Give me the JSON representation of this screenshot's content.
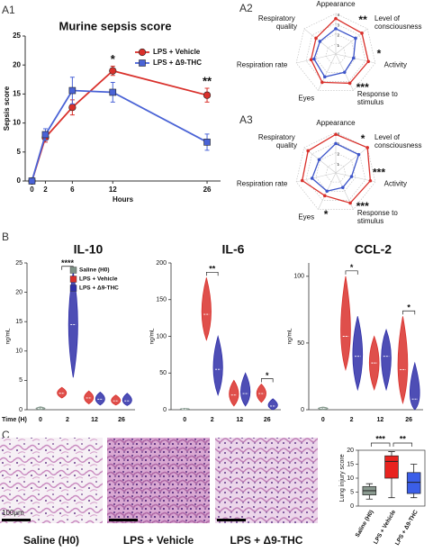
{
  "panel_labels": [
    "A1",
    "A2",
    "A3",
    "B",
    "C"
  ],
  "chart_data": [
    {
      "type": "line",
      "title": "Murine sepsis score",
      "xlabel": "Hours",
      "ylabel": "Sepsis score",
      "x": [
        0,
        2,
        6,
        12,
        26
      ],
      "xlim": [
        -1,
        28
      ],
      "xticks": [
        0,
        2,
        6,
        12,
        26
      ],
      "ylim": [
        0,
        25
      ],
      "yticks": [
        0,
        5,
        10,
        15,
        20,
        25
      ],
      "series": [
        {
          "name": "LPS  + Vehicle",
          "color": "#d9302b",
          "marker": "circle",
          "values": [
            0,
            7.5,
            12.7,
            19.0,
            14.8
          ],
          "errors": [
            0,
            0.8,
            1.3,
            0.8,
            1.2
          ]
        },
        {
          "name": "LPS + Δ9-THC",
          "color": "#4a63d6",
          "marker": "square",
          "values": [
            0,
            8.0,
            15.6,
            15.3,
            6.7
          ],
          "errors": [
            0,
            1.0,
            2.3,
            1.7,
            1.4
          ]
        }
      ],
      "annotations": [
        {
          "text": "*",
          "x": 12
        },
        {
          "text": "**",
          "x": 26
        }
      ]
    },
    {
      "type": "radar",
      "categories": [
        "Appearance",
        "Level of consciousness",
        "Activity",
        "Response to stimulus",
        "Eyes",
        "Respiration rate",
        "Respiratory quality"
      ],
      "rlim": [
        0,
        4
      ],
      "rticks": [
        1,
        2,
        3,
        4
      ],
      "series": [
        {
          "color": "#d9302b",
          "values": [
            3.5,
            3.3,
            3.3,
            3.2,
            3.1,
            2.5,
            2.5
          ]
        },
        {
          "color": "#3d55c9",
          "values": [
            2.5,
            2.5,
            1.8,
            2.0,
            2.5,
            2.2,
            2.0
          ]
        }
      ],
      "significance": [
        {
          "text": "**",
          "category": "Level of consciousness"
        },
        {
          "text": "*",
          "category": "Activity"
        },
        {
          "text": "***",
          "category": "Response to stimulus"
        }
      ]
    },
    {
      "type": "radar",
      "categories": [
        "Appearance",
        "Level of consciousness",
        "Activity",
        "Response to stimulus",
        "Eyes",
        "Respiration rate",
        "Respiratory quality"
      ],
      "rlim": [
        0,
        4
      ],
      "rticks": [
        1,
        2,
        3,
        4
      ],
      "series": [
        {
          "color": "#d9302b",
          "values": [
            3.8,
            4.0,
            3.5,
            3.3,
            2.5,
            3.4,
            3.5
          ]
        },
        {
          "color": "#3d55c9",
          "values": [
            2.9,
            2.9,
            1.6,
            1.6,
            2.0,
            2.4,
            2.1
          ]
        }
      ],
      "significance": [
        {
          "text": "*",
          "category": "Level of consciousness"
        },
        {
          "text": "***",
          "category": "Activity"
        },
        {
          "text": "***",
          "category": "Response to stimulus"
        },
        {
          "text": "*",
          "category": "Eyes"
        }
      ]
    },
    {
      "type": "violin",
      "title": "IL-10",
      "ylabel": "ng/mL",
      "xlabel": "Time (H)",
      "categories": [
        0,
        2,
        12,
        26
      ],
      "ylim": [
        0,
        25
      ],
      "yticks": [
        0,
        5,
        10,
        15,
        20,
        25
      ],
      "legend": true,
      "series": [
        {
          "name": "Saline (H0)",
          "color": "#7f9488",
          "min": [
            0,
            null,
            null,
            null
          ],
          "median": [
            0.2,
            null,
            null,
            null
          ],
          "max": [
            0.5,
            null,
            null,
            null
          ]
        },
        {
          "name": "LPS + Vehicle",
          "color": "#d9302b",
          "min": [
            null,
            2.0,
            1.0,
            0.8
          ],
          "median": [
            null,
            2.8,
            2.0,
            1.5
          ],
          "max": [
            null,
            3.8,
            3.2,
            2.5
          ]
        },
        {
          "name": "LPS + Δ9-THC",
          "color": "#2f2fa8",
          "min": [
            null,
            5.5,
            0.8,
            0.7
          ],
          "median": [
            null,
            14.5,
            1.8,
            1.5
          ],
          "max": [
            null,
            23.5,
            3.0,
            2.8
          ]
        }
      ],
      "significance": [
        {
          "text": "****",
          "category": 2
        }
      ]
    },
    {
      "type": "violin",
      "title": "IL-6",
      "ylabel": "ng/mL",
      "categories": [
        0,
        2,
        12,
        26
      ],
      "ylim": [
        0,
        200
      ],
      "yticks": [
        0,
        50,
        100,
        150,
        200
      ],
      "series": [
        {
          "color": "#7f9488",
          "min": [
            0,
            null,
            null,
            null
          ],
          "median": [
            1,
            null,
            null,
            null
          ],
          "max": [
            2,
            null,
            null,
            null
          ]
        },
        {
          "color": "#d9302b",
          "min": [
            null,
            95,
            5,
            10
          ],
          "median": [
            null,
            130,
            20,
            22
          ],
          "max": [
            null,
            180,
            40,
            35
          ]
        },
        {
          "color": "#2f2fa8",
          "min": [
            null,
            20,
            5,
            0
          ],
          "median": [
            null,
            55,
            22,
            5
          ],
          "max": [
            null,
            100,
            50,
            15
          ]
        }
      ],
      "significance": [
        {
          "text": "**",
          "category": 2
        },
        {
          "text": "*",
          "category": 26
        }
      ]
    },
    {
      "type": "violin",
      "title": "CCL-2",
      "ylabel": "ng/mL",
      "categories": [
        0,
        2,
        12,
        26
      ],
      "ylim": [
        0,
        110
      ],
      "yticks": [
        0,
        50,
        100
      ],
      "series": [
        {
          "color": "#7f9488",
          "min": [
            0,
            null,
            null,
            null
          ],
          "median": [
            1,
            null,
            null,
            null
          ],
          "max": [
            2,
            null,
            null,
            null
          ]
        },
        {
          "color": "#d9302b",
          "min": [
            null,
            30,
            15,
            5
          ],
          "median": [
            null,
            55,
            35,
            30
          ],
          "max": [
            null,
            100,
            55,
            70
          ]
        },
        {
          "color": "#2f2fa8",
          "min": [
            null,
            15,
            15,
            0
          ],
          "median": [
            null,
            40,
            40,
            8
          ],
          "max": [
            null,
            70,
            60,
            35
          ]
        }
      ],
      "significance": [
        {
          "text": "*",
          "category": 2
        },
        {
          "text": "*",
          "category": 26
        }
      ]
    },
    {
      "type": "box",
      "ylabel": "Lung injury score",
      "categories": [
        "Saline (H0)",
        "LPS + Vehicle",
        "LPS + Δ9-THC"
      ],
      "colors": [
        "#8a9a90",
        "#e8231f",
        "#3b5ee8"
      ],
      "min": [
        2.5,
        3,
        3
      ],
      "q1": [
        4,
        10,
        4.5
      ],
      "median": [
        5.5,
        16,
        8.5
      ],
      "q3": [
        7,
        18,
        12
      ],
      "max": [
        8,
        19.5,
        15
      ],
      "ylim": [
        0,
        20
      ],
      "yticks": [
        0,
        5,
        10,
        15,
        20
      ],
      "significance": [
        {
          "text": "***",
          "from": "Saline (H0)",
          "to": "LPS + Vehicle"
        },
        {
          "text": "**",
          "from": "LPS + Vehicle",
          "to": "LPS + Δ9-THC"
        }
      ]
    }
  ],
  "micrographs": {
    "labels": [
      "Saline (H0)",
      "LPS + Vehicle",
      "LPS + Δ9-THC"
    ],
    "scale_bar": "100µm"
  }
}
